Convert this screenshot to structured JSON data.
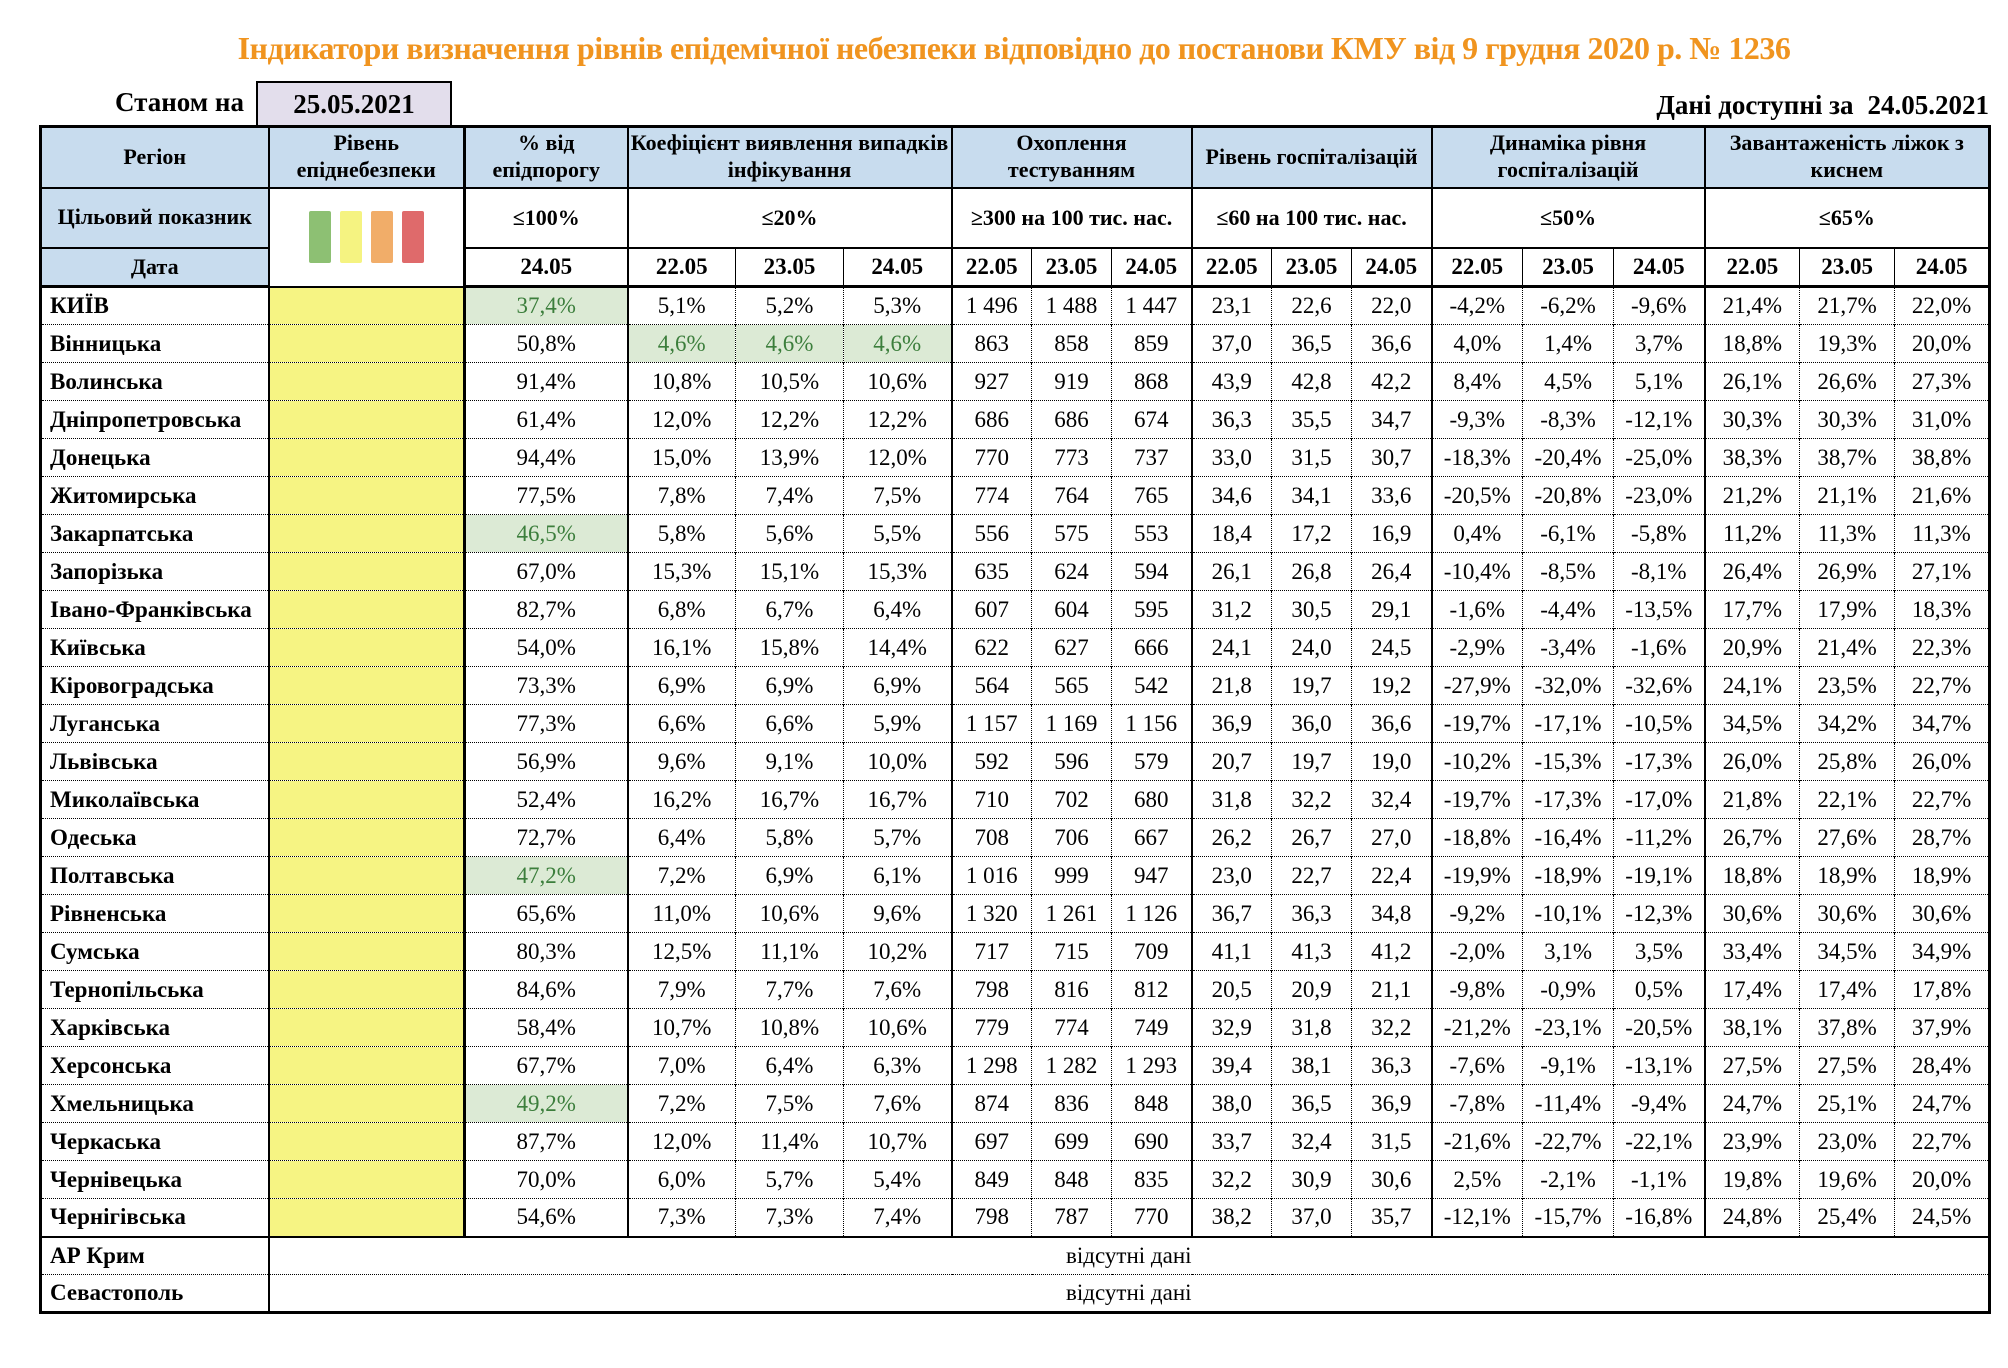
{
  "page": {
    "title": "Індикатори визначення рівнів епідемічної небезпеки відповідно до постанови КМУ від 9 грудня 2020 р. № 1236",
    "as_of_label": "Станом на",
    "as_of_date": "25.05.2021",
    "available_label": "Дані доступні за",
    "available_date": "24.05.2021"
  },
  "colors": {
    "title": "#F0941F",
    "header_bg": "#C8DCEE",
    "date_box_bg": "#E3DEEC",
    "level_cell_bg": "#F6F483",
    "green_cell_bg": "#DCEAD5",
    "green_text": "#3C7E3C",
    "legend": [
      "#8DC073",
      "#F5F381",
      "#F1AD69",
      "#DF6A6B"
    ]
  },
  "table": {
    "col_headers": [
      "Регіон",
      "Рівень епіднебезпеки",
      "% від епідпорогу",
      "Коефіцієнт виявлення випадків інфікування",
      "Охоплення тестуванням",
      "Рівень госпіталізацій",
      "Динаміка рівня госпіталізацій",
      "Завантаженість ліжок з киснем"
    ],
    "target_label": "Цільовий показник",
    "targets": [
      "≤100%",
      "≤20%",
      "≥300 на 100 тис. нас.",
      "≤60 на 100 тис. нас.",
      "≤50%",
      "≤65%"
    ],
    "date_label": "Дата",
    "single_date": "24.05",
    "dates": [
      "22.05",
      "23.05",
      "24.05"
    ],
    "no_data_text": "відсутні дані",
    "no_data_rows": [
      "АР Крим",
      "Севастополь"
    ],
    "rows": [
      {
        "region": "КИЇВ",
        "values": [
          "37,4%",
          "5,1%",
          "5,2%",
          "5,3%",
          "1 496",
          "1 488",
          "1 447",
          "23,1",
          "22,6",
          "22,0",
          "-4,2%",
          "-6,2%",
          "-9,6%",
          "21,4%",
          "21,7%",
          "22,0%"
        ],
        "green": [
          0
        ]
      },
      {
        "region": "Вінницька",
        "values": [
          "50,8%",
          "4,6%",
          "4,6%",
          "4,6%",
          "863",
          "858",
          "859",
          "37,0",
          "36,5",
          "36,6",
          "4,0%",
          "1,4%",
          "3,7%",
          "18,8%",
          "19,3%",
          "20,0%"
        ],
        "green": [
          1,
          2,
          3
        ]
      },
      {
        "region": "Волинська",
        "values": [
          "91,4%",
          "10,8%",
          "10,5%",
          "10,6%",
          "927",
          "919",
          "868",
          "43,9",
          "42,8",
          "42,2",
          "8,4%",
          "4,5%",
          "5,1%",
          "26,1%",
          "26,6%",
          "27,3%"
        ],
        "green": []
      },
      {
        "region": "Дніпропетровська",
        "values": [
          "61,4%",
          "12,0%",
          "12,2%",
          "12,2%",
          "686",
          "686",
          "674",
          "36,3",
          "35,5",
          "34,7",
          "-9,3%",
          "-8,3%",
          "-12,1%",
          "30,3%",
          "30,3%",
          "31,0%"
        ],
        "green": []
      },
      {
        "region": "Донецька",
        "values": [
          "94,4%",
          "15,0%",
          "13,9%",
          "12,0%",
          "770",
          "773",
          "737",
          "33,0",
          "31,5",
          "30,7",
          "-18,3%",
          "-20,4%",
          "-25,0%",
          "38,3%",
          "38,7%",
          "38,8%"
        ],
        "green": []
      },
      {
        "region": "Житомирська",
        "values": [
          "77,5%",
          "7,8%",
          "7,4%",
          "7,5%",
          "774",
          "764",
          "765",
          "34,6",
          "34,1",
          "33,6",
          "-20,5%",
          "-20,8%",
          "-23,0%",
          "21,2%",
          "21,1%",
          "21,6%"
        ],
        "green": []
      },
      {
        "region": "Закарпатська",
        "values": [
          "46,5%",
          "5,8%",
          "5,6%",
          "5,5%",
          "556",
          "575",
          "553",
          "18,4",
          "17,2",
          "16,9",
          "0,4%",
          "-6,1%",
          "-5,8%",
          "11,2%",
          "11,3%",
          "11,3%"
        ],
        "green": [
          0
        ]
      },
      {
        "region": "Запорізька",
        "values": [
          "67,0%",
          "15,3%",
          "15,1%",
          "15,3%",
          "635",
          "624",
          "594",
          "26,1",
          "26,8",
          "26,4",
          "-10,4%",
          "-8,5%",
          "-8,1%",
          "26,4%",
          "26,9%",
          "27,1%"
        ],
        "green": []
      },
      {
        "region": "Івано-Франківська",
        "values": [
          "82,7%",
          "6,8%",
          "6,7%",
          "6,4%",
          "607",
          "604",
          "595",
          "31,2",
          "30,5",
          "29,1",
          "-1,6%",
          "-4,4%",
          "-13,5%",
          "17,7%",
          "17,9%",
          "18,3%"
        ],
        "green": []
      },
      {
        "region": "Київська",
        "values": [
          "54,0%",
          "16,1%",
          "15,8%",
          "14,4%",
          "622",
          "627",
          "666",
          "24,1",
          "24,0",
          "24,5",
          "-2,9%",
          "-3,4%",
          "-1,6%",
          "20,9%",
          "21,4%",
          "22,3%"
        ],
        "green": []
      },
      {
        "region": "Кіровоградська",
        "values": [
          "73,3%",
          "6,9%",
          "6,9%",
          "6,9%",
          "564",
          "565",
          "542",
          "21,8",
          "19,7",
          "19,2",
          "-27,9%",
          "-32,0%",
          "-32,6%",
          "24,1%",
          "23,5%",
          "22,7%"
        ],
        "green": []
      },
      {
        "region": "Луганська",
        "values": [
          "77,3%",
          "6,6%",
          "6,6%",
          "5,9%",
          "1 157",
          "1 169",
          "1 156",
          "36,9",
          "36,0",
          "36,6",
          "-19,7%",
          "-17,1%",
          "-10,5%",
          "34,5%",
          "34,2%",
          "34,7%"
        ],
        "green": []
      },
      {
        "region": "Львівська",
        "values": [
          "56,9%",
          "9,6%",
          "9,1%",
          "10,0%",
          "592",
          "596",
          "579",
          "20,7",
          "19,7",
          "19,0",
          "-10,2%",
          "-15,3%",
          "-17,3%",
          "26,0%",
          "25,8%",
          "26,0%"
        ],
        "green": []
      },
      {
        "region": "Миколаївська",
        "values": [
          "52,4%",
          "16,2%",
          "16,7%",
          "16,7%",
          "710",
          "702",
          "680",
          "31,8",
          "32,2",
          "32,4",
          "-19,7%",
          "-17,3%",
          "-17,0%",
          "21,8%",
          "22,1%",
          "22,7%"
        ],
        "green": []
      },
      {
        "region": "Одеська",
        "values": [
          "72,7%",
          "6,4%",
          "5,8%",
          "5,7%",
          "708",
          "706",
          "667",
          "26,2",
          "26,7",
          "27,0",
          "-18,8%",
          "-16,4%",
          "-11,2%",
          "26,7%",
          "27,6%",
          "28,7%"
        ],
        "green": []
      },
      {
        "region": "Полтавська",
        "values": [
          "47,2%",
          "7,2%",
          "6,9%",
          "6,1%",
          "1 016",
          "999",
          "947",
          "23,0",
          "22,7",
          "22,4",
          "-19,9%",
          "-18,9%",
          "-19,1%",
          "18,8%",
          "18,9%",
          "18,9%"
        ],
        "green": [
          0
        ]
      },
      {
        "region": "Рівненська",
        "values": [
          "65,6%",
          "11,0%",
          "10,6%",
          "9,6%",
          "1 320",
          "1 261",
          "1 126",
          "36,7",
          "36,3",
          "34,8",
          "-9,2%",
          "-10,1%",
          "-12,3%",
          "30,6%",
          "30,6%",
          "30,6%"
        ],
        "green": []
      },
      {
        "region": "Сумська",
        "values": [
          "80,3%",
          "12,5%",
          "11,1%",
          "10,2%",
          "717",
          "715",
          "709",
          "41,1",
          "41,3",
          "41,2",
          "-2,0%",
          "3,1%",
          "3,5%",
          "33,4%",
          "34,5%",
          "34,9%"
        ],
        "green": []
      },
      {
        "region": "Тернопільська",
        "values": [
          "84,6%",
          "7,9%",
          "7,7%",
          "7,6%",
          "798",
          "816",
          "812",
          "20,5",
          "20,9",
          "21,1",
          "-9,8%",
          "-0,9%",
          "0,5%",
          "17,4%",
          "17,4%",
          "17,8%"
        ],
        "green": []
      },
      {
        "region": "Харківська",
        "values": [
          "58,4%",
          "10,7%",
          "10,8%",
          "10,6%",
          "779",
          "774",
          "749",
          "32,9",
          "31,8",
          "32,2",
          "-21,2%",
          "-23,1%",
          "-20,5%",
          "38,1%",
          "37,8%",
          "37,9%"
        ],
        "green": []
      },
      {
        "region": "Херсонська",
        "values": [
          "67,7%",
          "7,0%",
          "6,4%",
          "6,3%",
          "1 298",
          "1 282",
          "1 293",
          "39,4",
          "38,1",
          "36,3",
          "-7,6%",
          "-9,1%",
          "-13,1%",
          "27,5%",
          "27,5%",
          "28,4%"
        ],
        "green": []
      },
      {
        "region": "Хмельницька",
        "values": [
          "49,2%",
          "7,2%",
          "7,5%",
          "7,6%",
          "874",
          "836",
          "848",
          "38,0",
          "36,5",
          "36,9",
          "-7,8%",
          "-11,4%",
          "-9,4%",
          "24,7%",
          "25,1%",
          "24,7%"
        ],
        "green": [
          0
        ]
      },
      {
        "region": "Черкаська",
        "values": [
          "87,7%",
          "12,0%",
          "11,4%",
          "10,7%",
          "697",
          "699",
          "690",
          "33,7",
          "32,4",
          "31,5",
          "-21,6%",
          "-22,7%",
          "-22,1%",
          "23,9%",
          "23,0%",
          "22,7%"
        ],
        "green": []
      },
      {
        "region": "Чернівецька",
        "values": [
          "70,0%",
          "6,0%",
          "5,7%",
          "5,4%",
          "849",
          "848",
          "835",
          "32,2",
          "30,9",
          "30,6",
          "2,5%",
          "-2,1%",
          "-1,1%",
          "19,8%",
          "19,6%",
          "20,0%"
        ],
        "green": []
      },
      {
        "region": "Чернігівська",
        "values": [
          "54,6%",
          "7,3%",
          "7,3%",
          "7,4%",
          "798",
          "787",
          "770",
          "38,2",
          "37,0",
          "35,7",
          "-12,1%",
          "-15,7%",
          "-16,8%",
          "24,8%",
          "25,4%",
          "24,5%"
        ],
        "green": []
      }
    ]
  }
}
